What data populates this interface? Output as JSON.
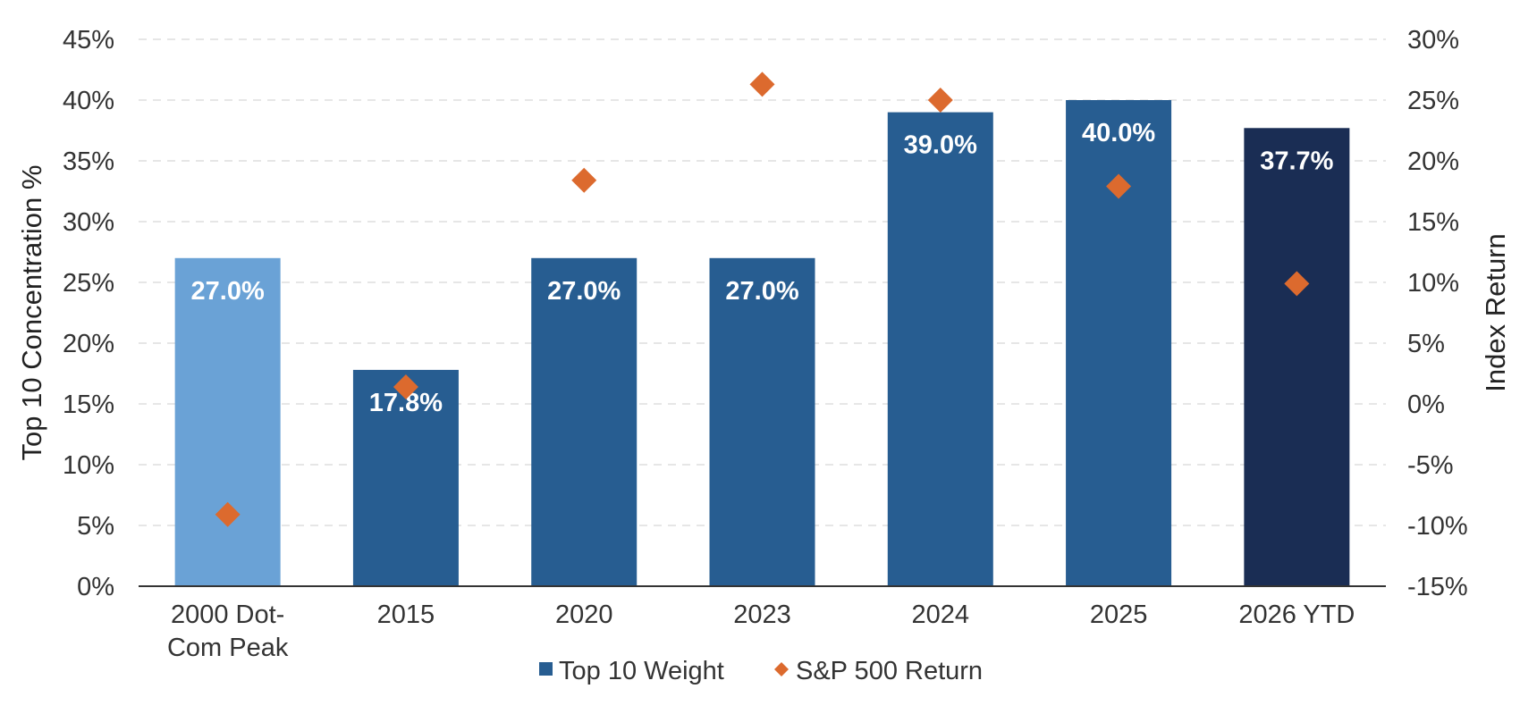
{
  "chart_data": {
    "type": "bar",
    "categories": [
      "2000 Dot-Com Peak",
      "2015",
      "2020",
      "2023",
      "2024",
      "2025",
      "2026 YTD"
    ],
    "category_lines": [
      [
        "2000 Dot-",
        "Com Peak"
      ],
      [
        "2015"
      ],
      [
        "2020"
      ],
      [
        "2023"
      ],
      [
        "2024"
      ],
      [
        "2025"
      ],
      [
        "2026 YTD"
      ]
    ],
    "series": [
      {
        "name": "Top 10 Weight",
        "type": "bar",
        "axis": "left",
        "values": [
          27.0,
          17.8,
          27.0,
          27.0,
          39.0,
          40.0,
          37.7
        ],
        "labels": [
          "27.0%",
          "17.8%",
          "27.0%",
          "27.0%",
          "39.0%",
          "40.0%",
          "37.7%"
        ],
        "colors": [
          "#6aa2d6",
          "#275d91",
          "#275d91",
          "#275d91",
          "#275d91",
          "#275d91",
          "#1a2d54"
        ]
      },
      {
        "name": "S&P 500 Return",
        "type": "scatter",
        "marker": "diamond",
        "axis": "right",
        "values": [
          -9.1,
          1.4,
          18.4,
          26.3,
          25.0,
          17.9,
          9.9
        ],
        "color": "#dc6a2e"
      }
    ],
    "y_left": {
      "label": "Top 10 Concentration %",
      "min": 0,
      "max": 45,
      "ticks": [
        0,
        5,
        10,
        15,
        20,
        25,
        30,
        35,
        40,
        45
      ],
      "tick_labels": [
        "0%",
        "5%",
        "10%",
        "15%",
        "20%",
        "25%",
        "30%",
        "35%",
        "40%",
        "45%"
      ]
    },
    "y_right": {
      "label": "Index Return",
      "min": -15,
      "max": 30,
      "ticks": [
        -15,
        -10,
        -5,
        0,
        5,
        10,
        15,
        20,
        25,
        30
      ],
      "tick_labels": [
        "-15%",
        "-10%",
        "-5%",
        "0%",
        "5%",
        "10%",
        "15%",
        "20%",
        "25%",
        "30%"
      ]
    },
    "grid": true,
    "legend": {
      "position": "bottom",
      "items": [
        {
          "label": "Top 10 Weight",
          "marker": "square",
          "color": "#275d91"
        },
        {
          "label": "S&P 500 Return",
          "marker": "diamond",
          "color": "#dc6a2e"
        }
      ]
    }
  }
}
